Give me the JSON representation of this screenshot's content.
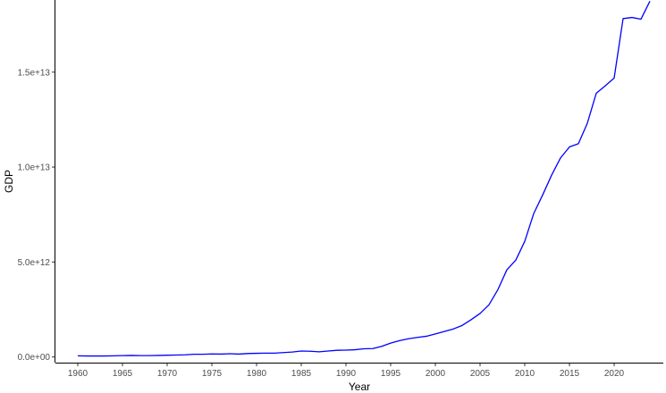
{
  "chart_data": {
    "type": "line",
    "title": "",
    "xlabel": "Year",
    "ylabel": "GDP",
    "xlim": [
      1957.5,
      2025.5
    ],
    "ylim": [
      -300000000000.0,
      18800000000000.0
    ],
    "x_ticks": [
      1960,
      1965,
      1970,
      1975,
      1980,
      1985,
      1990,
      1995,
      2000,
      2005,
      2010,
      2015,
      2020
    ],
    "x_tick_labels": [
      "1960",
      "1965",
      "1970",
      "1975",
      "1980",
      "1985",
      "1990",
      "1995",
      "2000",
      "2005",
      "2010",
      "2015",
      "2020"
    ],
    "y_ticks": [
      0,
      5000000000000.0,
      10000000000000.0,
      15000000000000.0
    ],
    "y_tick_labels": [
      "0.0e+00",
      "5.0e+12",
      "1.0e+13",
      "1.5e+13"
    ],
    "grid": false,
    "legend": "none",
    "color": "#0000ff",
    "x": [
      1960,
      1961,
      1962,
      1963,
      1964,
      1965,
      1966,
      1967,
      1968,
      1969,
      1970,
      1971,
      1972,
      1973,
      1974,
      1975,
      1976,
      1977,
      1978,
      1979,
      1980,
      1981,
      1982,
      1983,
      1984,
      1985,
      1986,
      1987,
      1988,
      1989,
      1990,
      1991,
      1992,
      1993,
      1994,
      1995,
      1996,
      1997,
      1998,
      1999,
      2000,
      2001,
      2002,
      2003,
      2004,
      2005,
      2006,
      2007,
      2008,
      2009,
      2010,
      2011,
      2012,
      2013,
      2014,
      2015,
      2016,
      2017,
      2018,
      2019,
      2020,
      2021,
      2022,
      2023,
      2024
    ],
    "y": [
      60000000000.0,
      50000000000.0,
      50000000000.0,
      50000000000.0,
      60000000000.0,
      70000000000.0,
      80000000000.0,
      70000000000.0,
      70000000000.0,
      80000000000.0,
      90000000000.0,
      100000000000.0,
      110000000000.0,
      140000000000.0,
      140000000000.0,
      160000000000.0,
      150000000000.0,
      170000000000.0,
      150000000000.0,
      180000000000.0,
      190000000000.0,
      200000000000.0,
      200000000000.0,
      230000000000.0,
      260000000000.0,
      310000000000.0,
      300000000000.0,
      270000000000.0,
      310000000000.0,
      350000000000.0,
      360000000000.0,
      380000000000.0,
      430000000000.0,
      440000000000.0,
      560000000000.0,
      730000000000.0,
      860000000000.0,
      960000000000.0,
      1030000000000.0,
      1090000000000.0,
      1210000000000.0,
      1340000000000.0,
      1470000000000.0,
      1660000000000.0,
      1960000000000.0,
      2290000000000.0,
      2750000000000.0,
      3550000000000.0,
      4590000000000.0,
      5100000000000.0,
      6090000000000.0,
      7550000000000.0,
      8530000000000.0,
      9570000000000.0,
      10480000000000.0,
      11060000000000.0,
      11230000000000.0,
      12310000000000.0,
      13890000000000.0,
      14280000000000.0,
      14690000000000.0,
      17820000000000.0,
      17880000000000.0,
      17790000000000.0,
      18740000000000.0
    ]
  }
}
